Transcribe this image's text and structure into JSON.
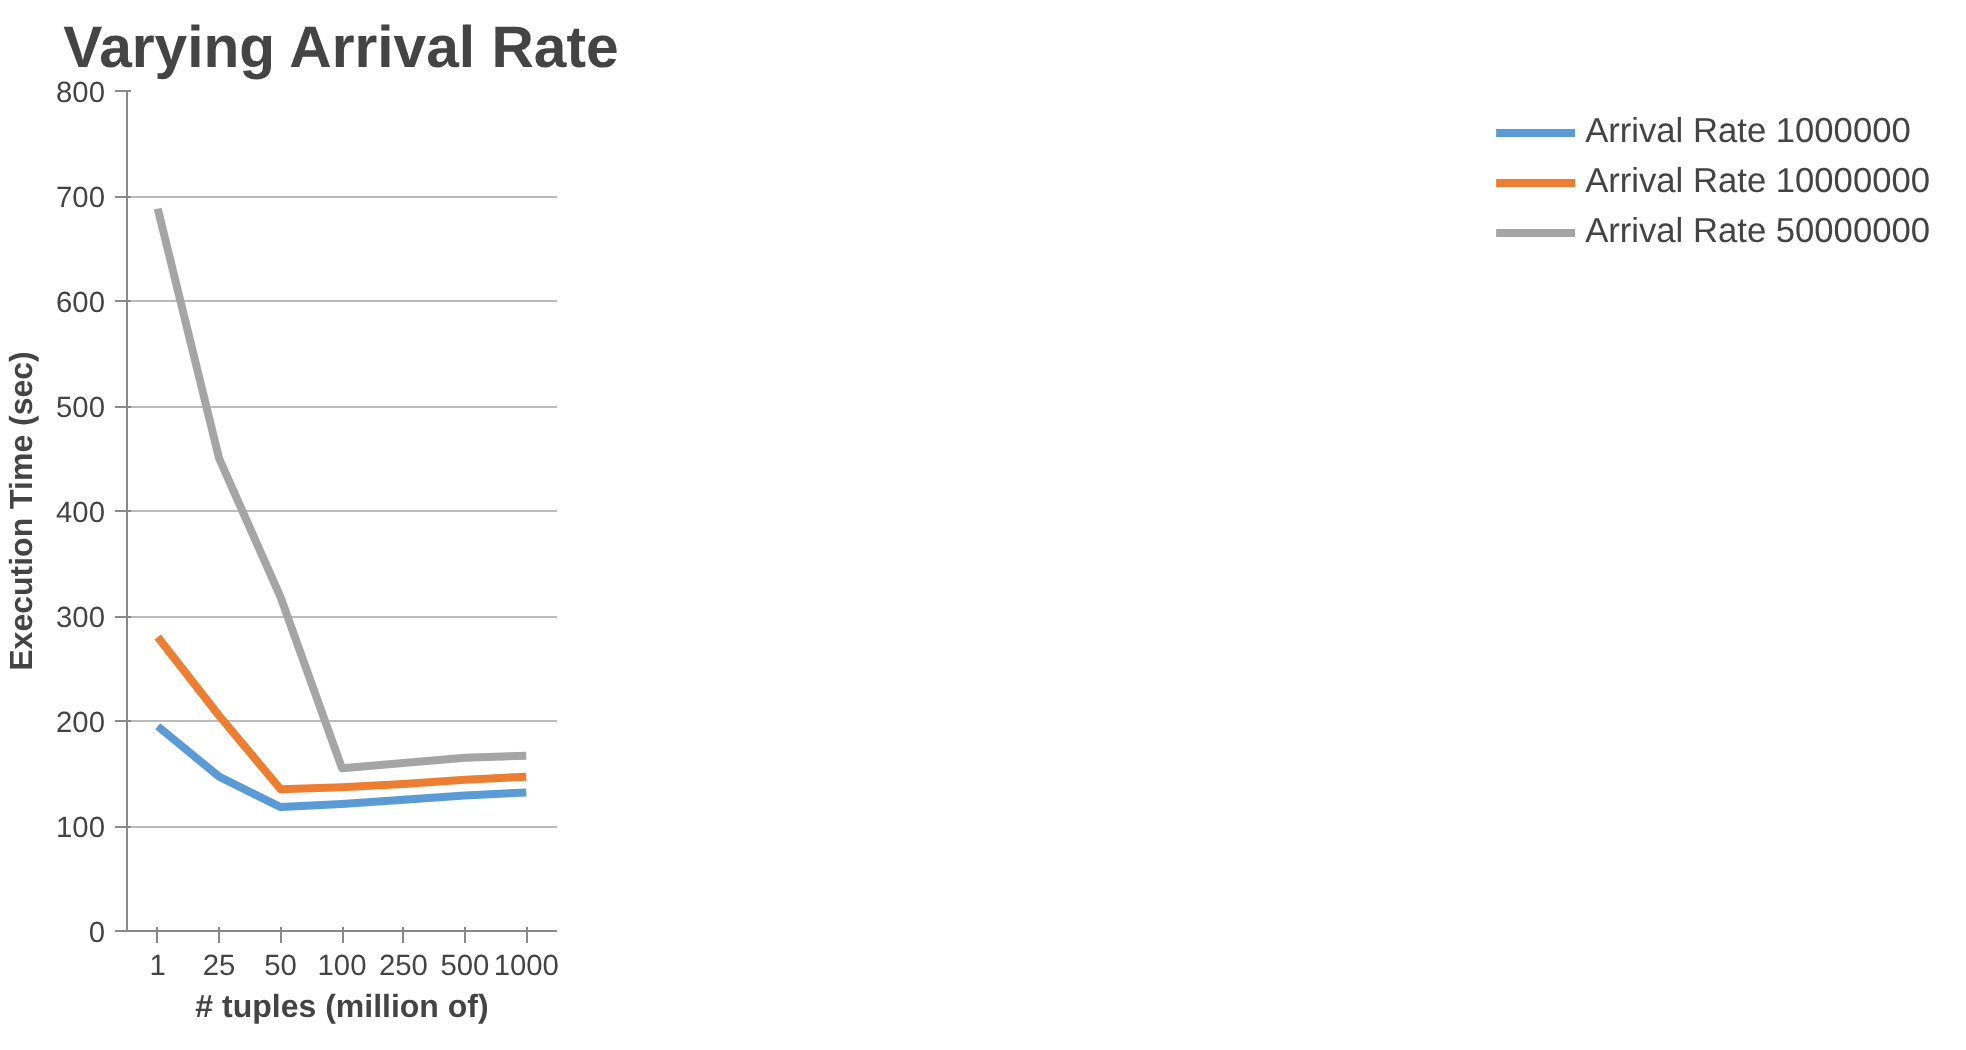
{
  "chart_data": {
    "type": "line",
    "title": "Varying Arrival Rate",
    "xlabel": "# tuples (million of)",
    "ylabel": "Execution Time (sec)",
    "categories": [
      "1",
      "25",
      "50",
      "100",
      "250",
      "500",
      "1000"
    ],
    "series": [
      {
        "name": "Arrival Rate 1000000",
        "color": "#5b9bd5",
        "values": [
          195,
          147,
          118,
          121,
          125,
          129,
          132
        ]
      },
      {
        "name": "Arrival Rate 10000000",
        "color": "#ed7d31",
        "values": [
          280,
          205,
          135,
          137,
          140,
          144,
          147
        ]
      },
      {
        "name": "Arrival Rate 50000000",
        "color": "#a5a5a5",
        "values": [
          688,
          450,
          318,
          155,
          160,
          165,
          167
        ]
      }
    ],
    "ylim": [
      0,
      800
    ],
    "yticks": [
      0,
      100,
      200,
      300,
      400,
      500,
      600,
      700,
      800
    ],
    "grid": "y",
    "legend": "right",
    "marker": "none"
  }
}
